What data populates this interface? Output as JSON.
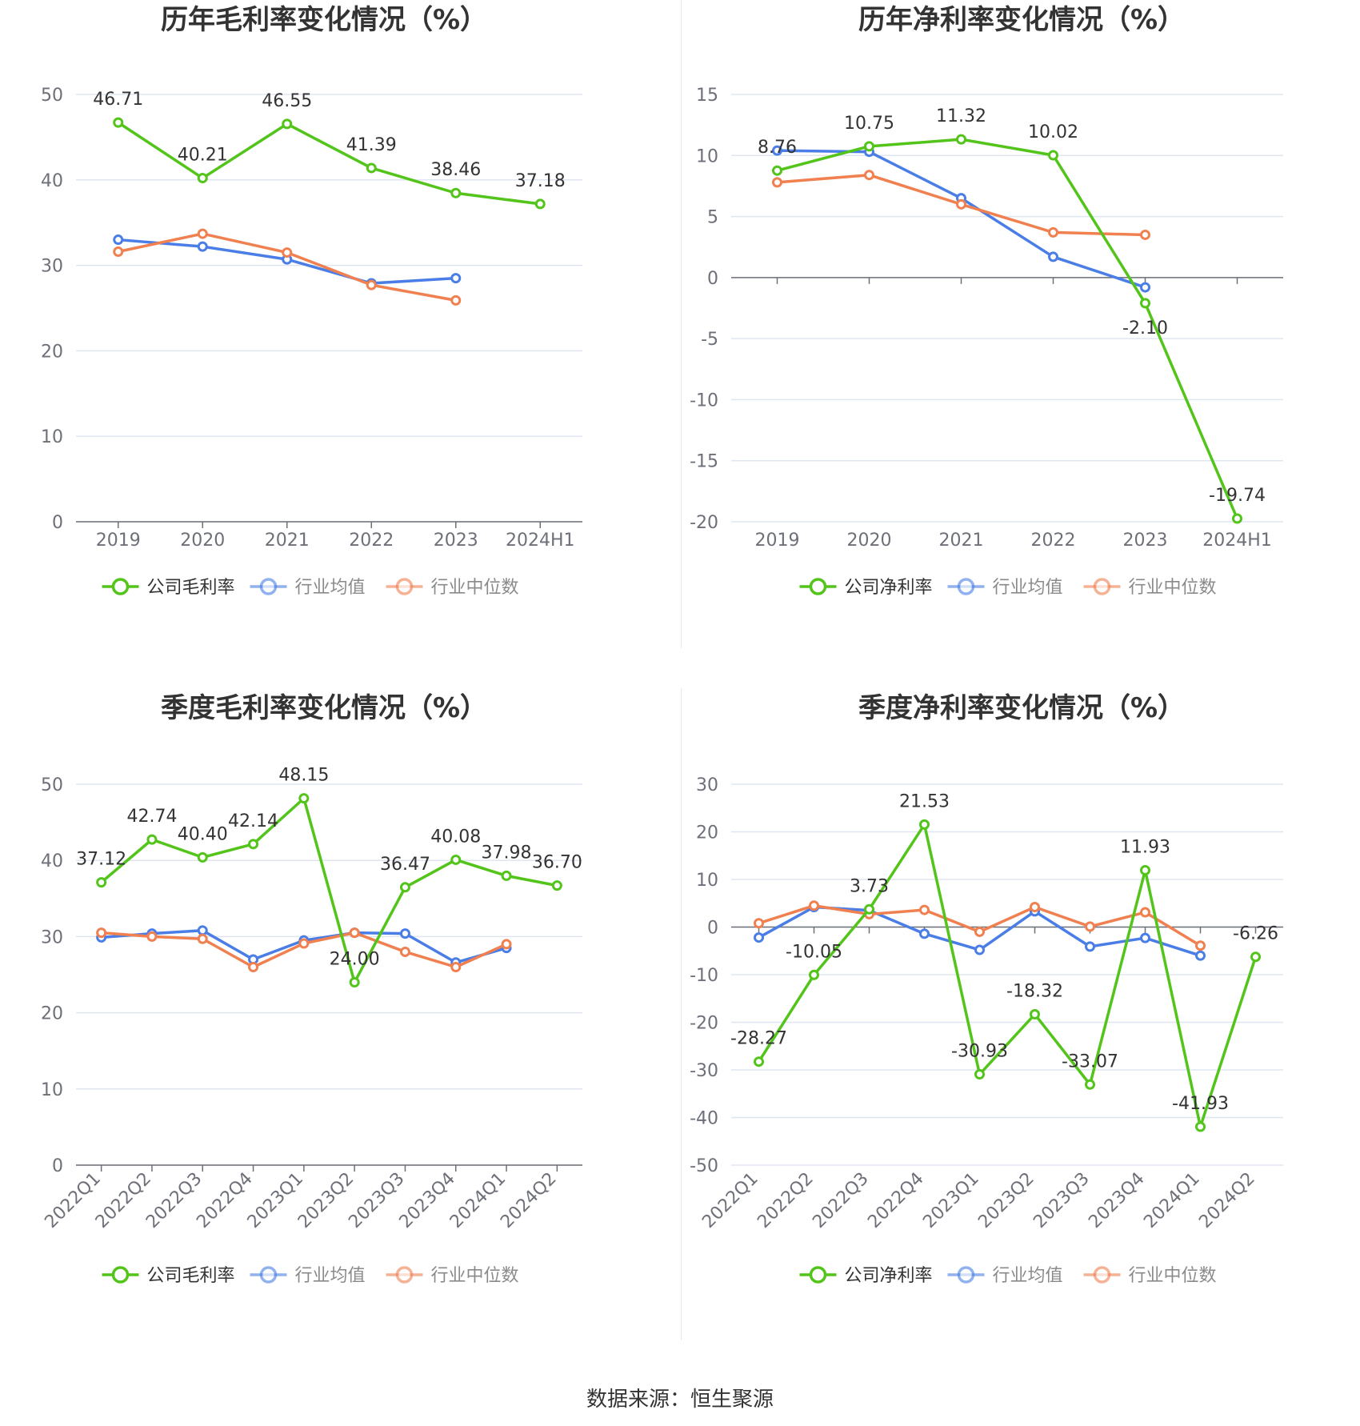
{
  "source": "数据来源：恒生聚源",
  "colors": {
    "company": "#52c41a",
    "avg": "#4a7ee6",
    "median": "#f08050",
    "grid": "#e0e6f1",
    "axis": "#6e7079"
  },
  "chart_data": [
    {
      "type": "line",
      "title": "历年毛利率变化情况（%）",
      "categories": [
        "2019",
        "2020",
        "2021",
        "2022",
        "2023",
        "2024H1"
      ],
      "ylim": [
        0,
        50
      ],
      "yticks": [
        0,
        10,
        20,
        30,
        40,
        50
      ],
      "grid": true,
      "legend_position": "bottom",
      "series": [
        {
          "name": "公司毛利率",
          "key": "company",
          "values": [
            46.71,
            40.21,
            46.55,
            41.39,
            38.46,
            37.18
          ],
          "labels": [
            "46.71",
            "40.21",
            "46.55",
            "41.39",
            "38.46",
            "37.18"
          ]
        },
        {
          "name": "行业均值",
          "key": "avg",
          "values": [
            33.0,
            32.2,
            30.7,
            27.9,
            28.5,
            null
          ]
        },
        {
          "name": "行业中位数",
          "key": "median",
          "values": [
            31.6,
            33.7,
            31.5,
            27.7,
            25.9,
            null
          ]
        }
      ]
    },
    {
      "type": "line",
      "title": "历年净利率变化情况（%）",
      "categories": [
        "2019",
        "2020",
        "2021",
        "2022",
        "2023",
        "2024H1"
      ],
      "ylim": [
        -20,
        15
      ],
      "yticks": [
        -20,
        -15,
        -10,
        -5,
        0,
        5,
        10,
        15
      ],
      "grid": true,
      "legend_position": "bottom",
      "series": [
        {
          "name": "公司净利率",
          "key": "company",
          "values": [
            8.76,
            10.75,
            11.32,
            10.02,
            -2.1,
            -19.74
          ],
          "labels": [
            "8.76",
            "10.75",
            "11.32",
            "10.02",
            "-2.10",
            "-19.74"
          ]
        },
        {
          "name": "行业均值",
          "key": "avg",
          "values": [
            10.4,
            10.3,
            6.5,
            1.7,
            -0.8,
            null
          ]
        },
        {
          "name": "行业中位数",
          "key": "median",
          "values": [
            7.8,
            8.4,
            6.0,
            3.7,
            3.5,
            null
          ]
        }
      ]
    },
    {
      "type": "line",
      "title": "季度毛利率变化情况（%）",
      "categories": [
        "2022Q1",
        "2022Q2",
        "2022Q3",
        "2022Q4",
        "2023Q1",
        "2023Q2",
        "2023Q3",
        "2023Q4",
        "2024Q1",
        "2024Q2"
      ],
      "ylim": [
        0,
        50
      ],
      "yticks": [
        0,
        10,
        20,
        30,
        40,
        50
      ],
      "grid": true,
      "legend_position": "bottom",
      "series": [
        {
          "name": "公司毛利率",
          "key": "company",
          "values": [
            37.12,
            42.74,
            40.4,
            42.14,
            48.15,
            24.0,
            36.47,
            40.08,
            37.98,
            36.7
          ],
          "labels": [
            "37.12",
            "42.74",
            "40.40",
            "42.14",
            "48.15",
            "24.00",
            "36.47",
            "40.08",
            "37.98",
            "36.70"
          ]
        },
        {
          "name": "行业均值",
          "key": "avg",
          "values": [
            29.9,
            30.4,
            30.8,
            27.0,
            29.5,
            30.5,
            30.4,
            26.6,
            28.5,
            null
          ]
        },
        {
          "name": "行业中位数",
          "key": "median",
          "values": [
            30.5,
            30.0,
            29.7,
            26.0,
            29.1,
            30.5,
            28.0,
            26.0,
            29.0,
            null
          ]
        }
      ]
    },
    {
      "type": "line",
      "title": "季度净利率变化情况（%）",
      "categories": [
        "2022Q1",
        "2022Q2",
        "2022Q3",
        "2022Q4",
        "2023Q1",
        "2023Q2",
        "2023Q3",
        "2023Q4",
        "2024Q1",
        "2024Q2"
      ],
      "ylim": [
        -50,
        30
      ],
      "yticks": [
        -50,
        -40,
        -30,
        -20,
        -10,
        0,
        10,
        20,
        30
      ],
      "grid": true,
      "legend_position": "bottom",
      "series": [
        {
          "name": "公司净利率",
          "key": "company",
          "values": [
            -28.27,
            -10.05,
            3.73,
            21.53,
            -30.93,
            -18.32,
            -33.07,
            11.93,
            -41.93,
            -6.26
          ],
          "labels": [
            "-28.27",
            "-10.05",
            "3.73",
            "21.53",
            "-30.93",
            "-18.32",
            "-33.07",
            "11.93",
            "-41.93",
            "-6.26"
          ]
        },
        {
          "name": "行业均值",
          "key": "avg",
          "values": [
            -2.2,
            4.2,
            3.5,
            -1.4,
            -4.8,
            3.3,
            -4.1,
            -2.3,
            -6.0,
            null
          ]
        },
        {
          "name": "行业中位数",
          "key": "median",
          "values": [
            0.8,
            4.5,
            2.7,
            3.6,
            -1.0,
            4.2,
            0.1,
            3.1,
            -3.9,
            null
          ]
        }
      ]
    }
  ]
}
